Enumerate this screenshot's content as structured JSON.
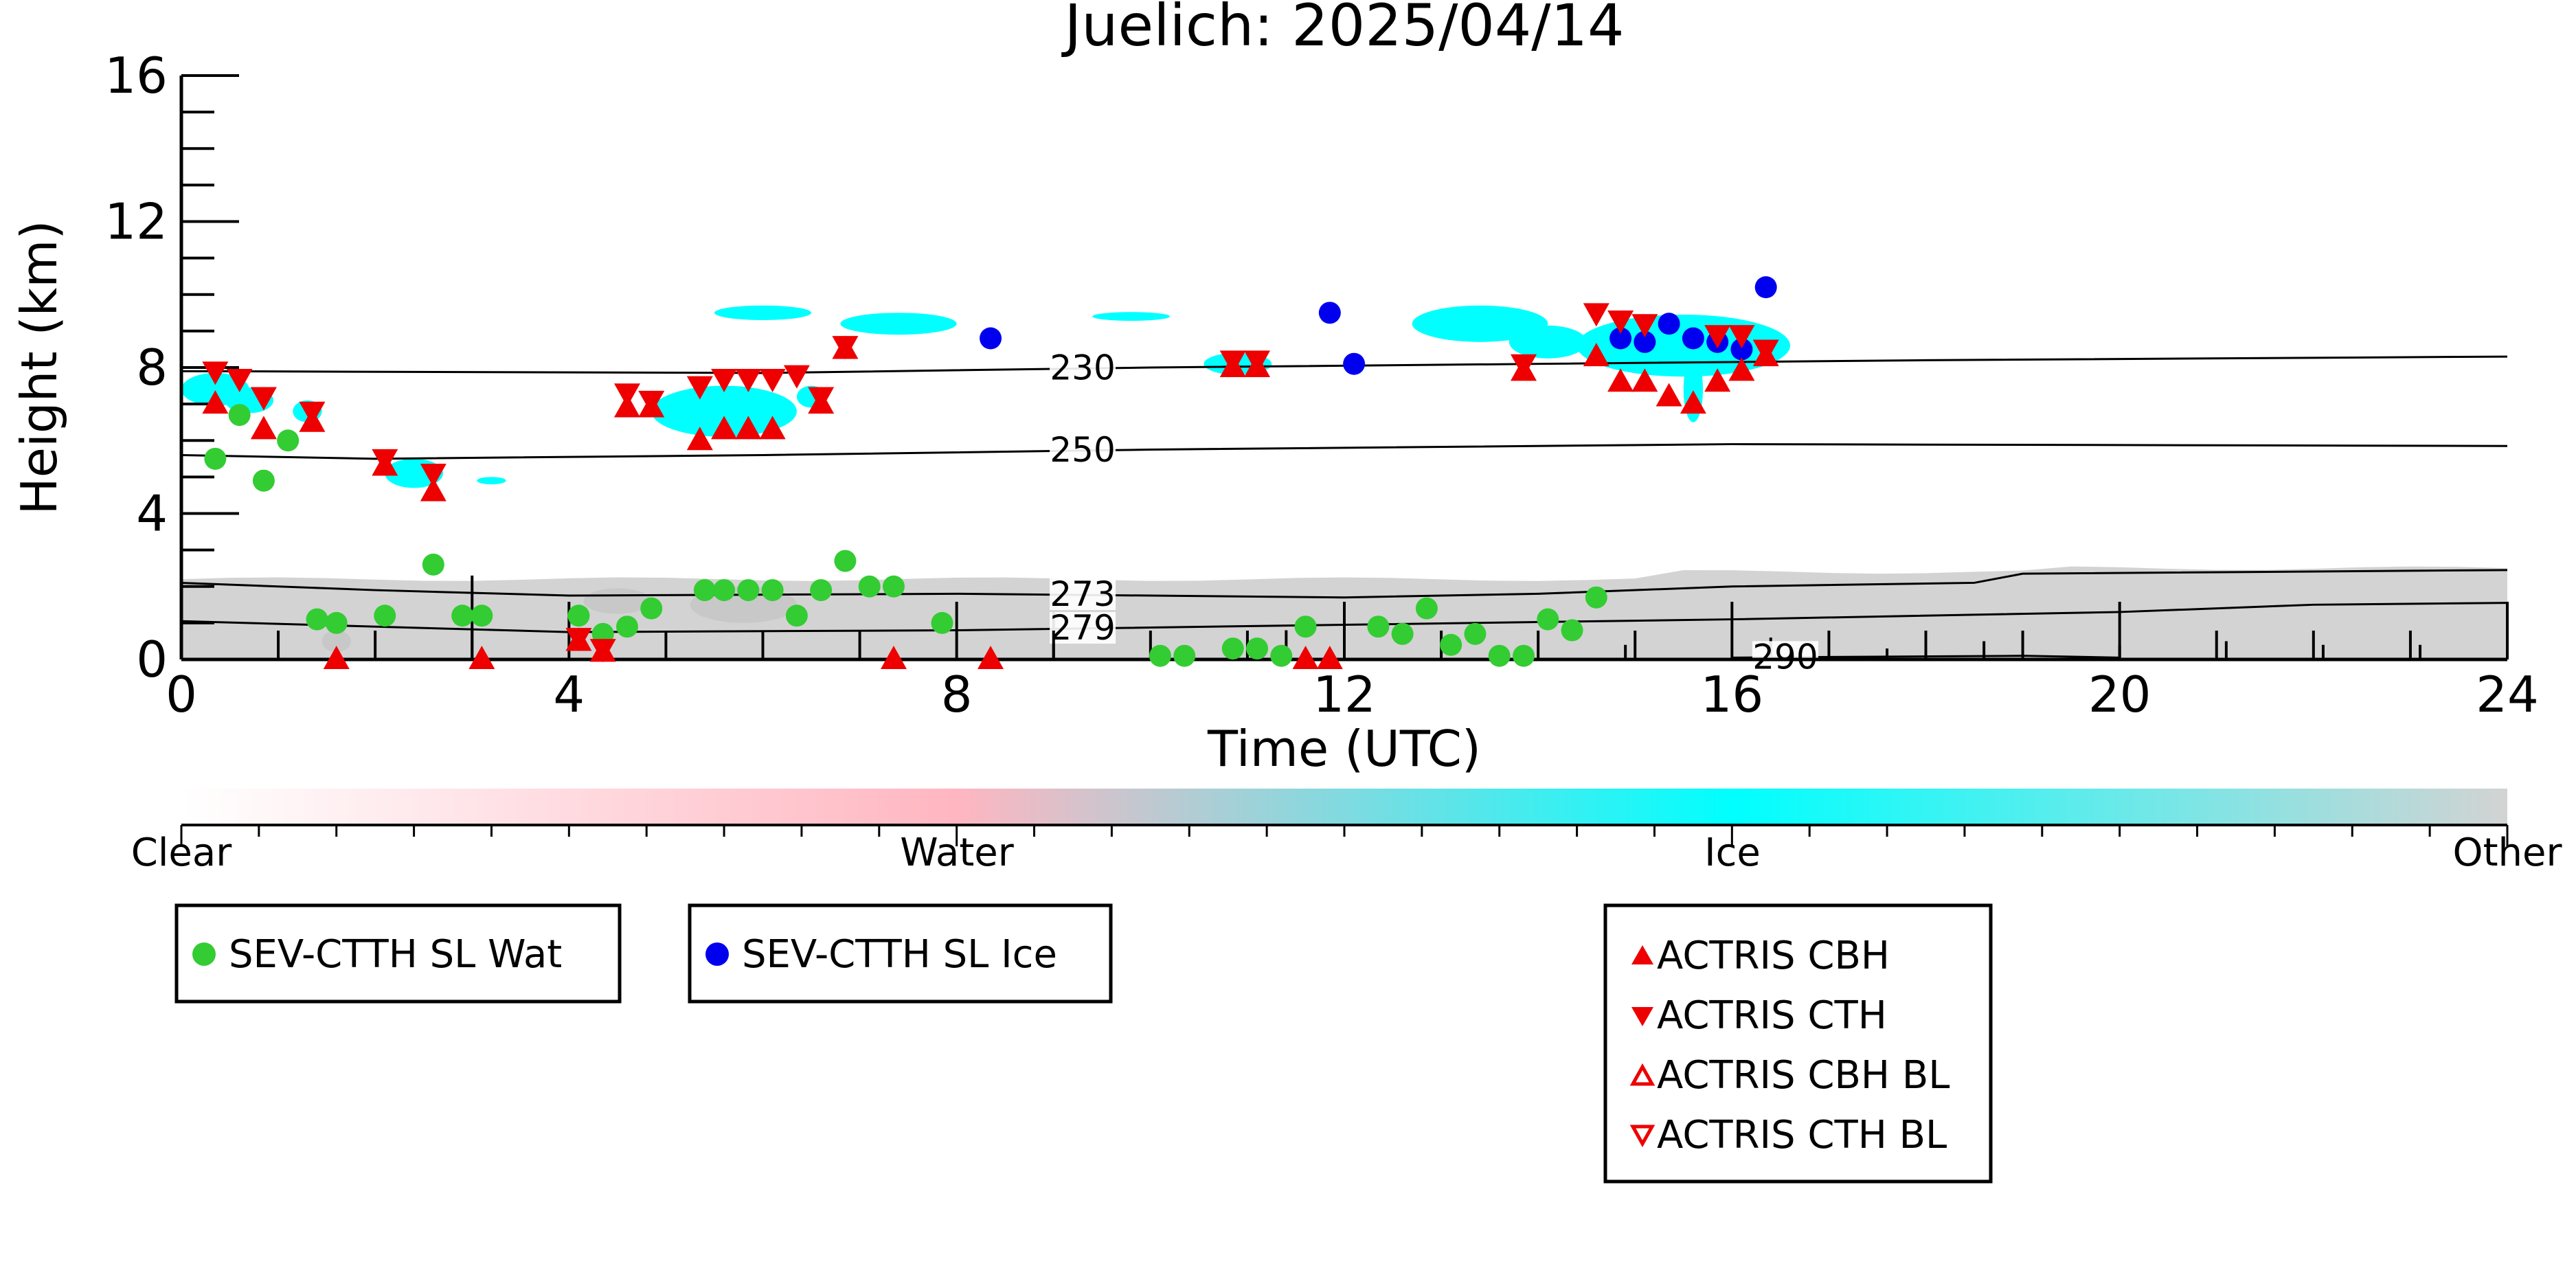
{
  "chart_data": {
    "type": "scatter",
    "title": "Juelich: 2025/04/14",
    "xlabel": "Time (UTC)",
    "ylabel": "Height (km)",
    "xlim": [
      0,
      24
    ],
    "ylim": [
      0,
      16
    ],
    "x_ticks": [
      0,
      4,
      8,
      12,
      16,
      20,
      24
    ],
    "x_tick_labels": [
      "0",
      "4",
      "8",
      "12",
      "16",
      "20",
      "24"
    ],
    "y_ticks": [
      0,
      4,
      8,
      12,
      16
    ],
    "y_tick_labels": [
      "0",
      "4",
      "8",
      "12",
      "16"
    ],
    "grid": false,
    "colorbar": {
      "labels": [
        "Clear",
        "Water",
        "Ice",
        "Other"
      ],
      "colors": [
        "#ffffff",
        "#ffb6c1",
        "#00ffff",
        "#d3d3d3"
      ]
    },
    "isotherms": [
      {
        "label": "230",
        "points": [
          [
            0,
            7.9
          ],
          [
            6,
            7.85
          ],
          [
            10,
            8.0
          ],
          [
            14,
            8.1
          ],
          [
            18,
            8.2
          ],
          [
            24,
            8.3
          ]
        ]
      },
      {
        "label": "250",
        "points": [
          [
            0,
            5.6
          ],
          [
            2,
            5.5
          ],
          [
            6,
            5.6
          ],
          [
            10,
            5.75
          ],
          [
            16,
            5.9
          ],
          [
            24,
            5.85
          ]
        ]
      },
      {
        "label": "273",
        "points": [
          [
            0,
            2.1
          ],
          [
            2,
            1.9
          ],
          [
            4,
            1.75
          ],
          [
            8,
            1.8
          ],
          [
            10,
            1.75
          ],
          [
            12,
            1.7
          ],
          [
            14,
            1.8
          ],
          [
            16,
            2.0
          ],
          [
            18.5,
            2.1
          ],
          [
            19,
            2.35
          ],
          [
            24,
            2.45
          ]
        ]
      },
      {
        "label": "279",
        "points": [
          [
            0,
            1.05
          ],
          [
            4,
            0.75
          ],
          [
            8,
            0.8
          ],
          [
            12,
            0.95
          ],
          [
            16,
            1.1
          ],
          [
            20,
            1.3
          ],
          [
            22,
            1.5
          ],
          [
            24,
            1.55
          ]
        ]
      },
      {
        "label": "290",
        "points": [
          [
            16,
            0.05
          ],
          [
            19,
            0.1
          ],
          [
            20,
            0.05
          ]
        ]
      }
    ],
    "series": [
      {
        "name": "SEV-CTTH SL Wat",
        "marker": "circle",
        "color": "#33cc33",
        "points": [
          [
            0.35,
            5.5
          ],
          [
            0.6,
            6.7
          ],
          [
            0.85,
            4.9
          ],
          [
            1.1,
            6.0
          ],
          [
            1.4,
            1.1
          ],
          [
            1.6,
            1.0
          ],
          [
            2.1,
            1.2
          ],
          [
            2.6,
            2.6
          ],
          [
            2.9,
            1.2
          ],
          [
            3.1,
            1.2
          ],
          [
            4.1,
            1.2
          ],
          [
            4.35,
            0.7
          ],
          [
            4.6,
            0.9
          ],
          [
            4.85,
            1.4
          ],
          [
            5.4,
            1.9
          ],
          [
            5.6,
            1.9
          ],
          [
            5.85,
            1.9
          ],
          [
            6.1,
            1.9
          ],
          [
            6.35,
            1.2
          ],
          [
            6.6,
            1.9
          ],
          [
            6.85,
            2.7
          ],
          [
            7.1,
            2.0
          ],
          [
            7.35,
            2.0
          ],
          [
            7.85,
            1.0
          ],
          [
            10.1,
            0.1
          ],
          [
            10.35,
            0.1
          ],
          [
            10.85,
            0.3
          ],
          [
            11.1,
            0.3
          ],
          [
            11.35,
            0.1
          ],
          [
            11.6,
            0.9
          ],
          [
            12.35,
            0.9
          ],
          [
            12.6,
            0.7
          ],
          [
            12.85,
            1.4
          ],
          [
            13.1,
            0.4
          ],
          [
            13.35,
            0.7
          ],
          [
            13.6,
            0.1
          ],
          [
            13.85,
            0.1
          ],
          [
            14.1,
            1.1
          ],
          [
            14.35,
            0.8
          ],
          [
            14.6,
            1.7
          ]
        ]
      },
      {
        "name": "SEV-CTTH SL Ice",
        "marker": "circle",
        "color": "#0000ee",
        "points": [
          [
            8.35,
            8.8
          ],
          [
            11.85,
            9.5
          ],
          [
            12.1,
            8.1
          ],
          [
            14.85,
            8.8
          ],
          [
            15.1,
            8.7
          ],
          [
            15.35,
            9.2
          ],
          [
            15.6,
            8.8
          ],
          [
            15.85,
            8.7
          ],
          [
            16.1,
            8.5
          ],
          [
            16.35,
            10.2
          ]
        ]
      },
      {
        "name": "ACTRIS CBH",
        "marker": "triangle-up",
        "color": "#ee0000",
        "points": [
          [
            0.35,
            7.0
          ],
          [
            0.85,
            6.3
          ],
          [
            1.35,
            6.5
          ],
          [
            2.1,
            5.3
          ],
          [
            2.6,
            4.6
          ],
          [
            4.6,
            6.9
          ],
          [
            4.85,
            6.9
          ],
          [
            5.35,
            6.0
          ],
          [
            5.6,
            6.3
          ],
          [
            5.85,
            6.3
          ],
          [
            6.1,
            6.3
          ],
          [
            6.6,
            7.0
          ],
          [
            6.85,
            8.5
          ],
          [
            10.85,
            8.0
          ],
          [
            11.1,
            8.0
          ],
          [
            13.85,
            7.9
          ],
          [
            14.6,
            8.3
          ],
          [
            14.85,
            7.6
          ],
          [
            15.1,
            7.6
          ],
          [
            15.35,
            7.2
          ],
          [
            15.6,
            7.0
          ],
          [
            15.85,
            7.6
          ],
          [
            16.1,
            7.9
          ],
          [
            16.35,
            8.3
          ],
          [
            1.6,
            0.0
          ],
          [
            3.1,
            0.0
          ],
          [
            4.1,
            0.5
          ],
          [
            4.35,
            0.2
          ],
          [
            7.35,
            0.0
          ],
          [
            8.35,
            0.0
          ],
          [
            11.6,
            0.0
          ],
          [
            11.85,
            0.0
          ]
        ]
      },
      {
        "name": "ACTRIS CTH",
        "marker": "triangle-down",
        "color": "#ee0000",
        "points": [
          [
            0.35,
            7.9
          ],
          [
            0.6,
            7.7
          ],
          [
            0.85,
            7.2
          ],
          [
            1.35,
            6.8
          ],
          [
            2.1,
            5.5
          ],
          [
            2.6,
            5.1
          ],
          [
            4.6,
            7.3
          ],
          [
            4.85,
            7.1
          ],
          [
            5.35,
            7.5
          ],
          [
            5.6,
            7.7
          ],
          [
            5.85,
            7.7
          ],
          [
            6.1,
            7.7
          ],
          [
            6.35,
            7.8
          ],
          [
            6.6,
            7.2
          ],
          [
            6.85,
            8.6
          ],
          [
            10.85,
            8.2
          ],
          [
            11.1,
            8.2
          ],
          [
            13.85,
            8.1
          ],
          [
            14.6,
            9.5
          ],
          [
            14.85,
            9.3
          ],
          [
            15.1,
            9.2
          ],
          [
            15.85,
            8.9
          ],
          [
            16.1,
            8.9
          ],
          [
            16.35,
            8.5
          ],
          [
            4.1,
            0.6
          ],
          [
            4.35,
            0.3
          ]
        ]
      },
      {
        "name": "ACTRIS CBH BL",
        "marker": "triangle-up-open",
        "color": "#ee0000",
        "points": []
      },
      {
        "name": "ACTRIS CTH BL",
        "marker": "triangle-down-open",
        "color": "#ee0000",
        "points": []
      }
    ],
    "legend": [
      {
        "placement": "bottom-left",
        "entries": [
          "SEV-CTTH SL Wat"
        ]
      },
      {
        "placement": "bottom-center-left",
        "entries": [
          "SEV-CTTH SL Ice"
        ]
      },
      {
        "placement": "bottom-right",
        "entries": [
          "ACTRIS CBH",
          "ACTRIS CTH",
          "ACTRIS CBH BL",
          "ACTRIS CTH BL"
        ]
      }
    ]
  }
}
